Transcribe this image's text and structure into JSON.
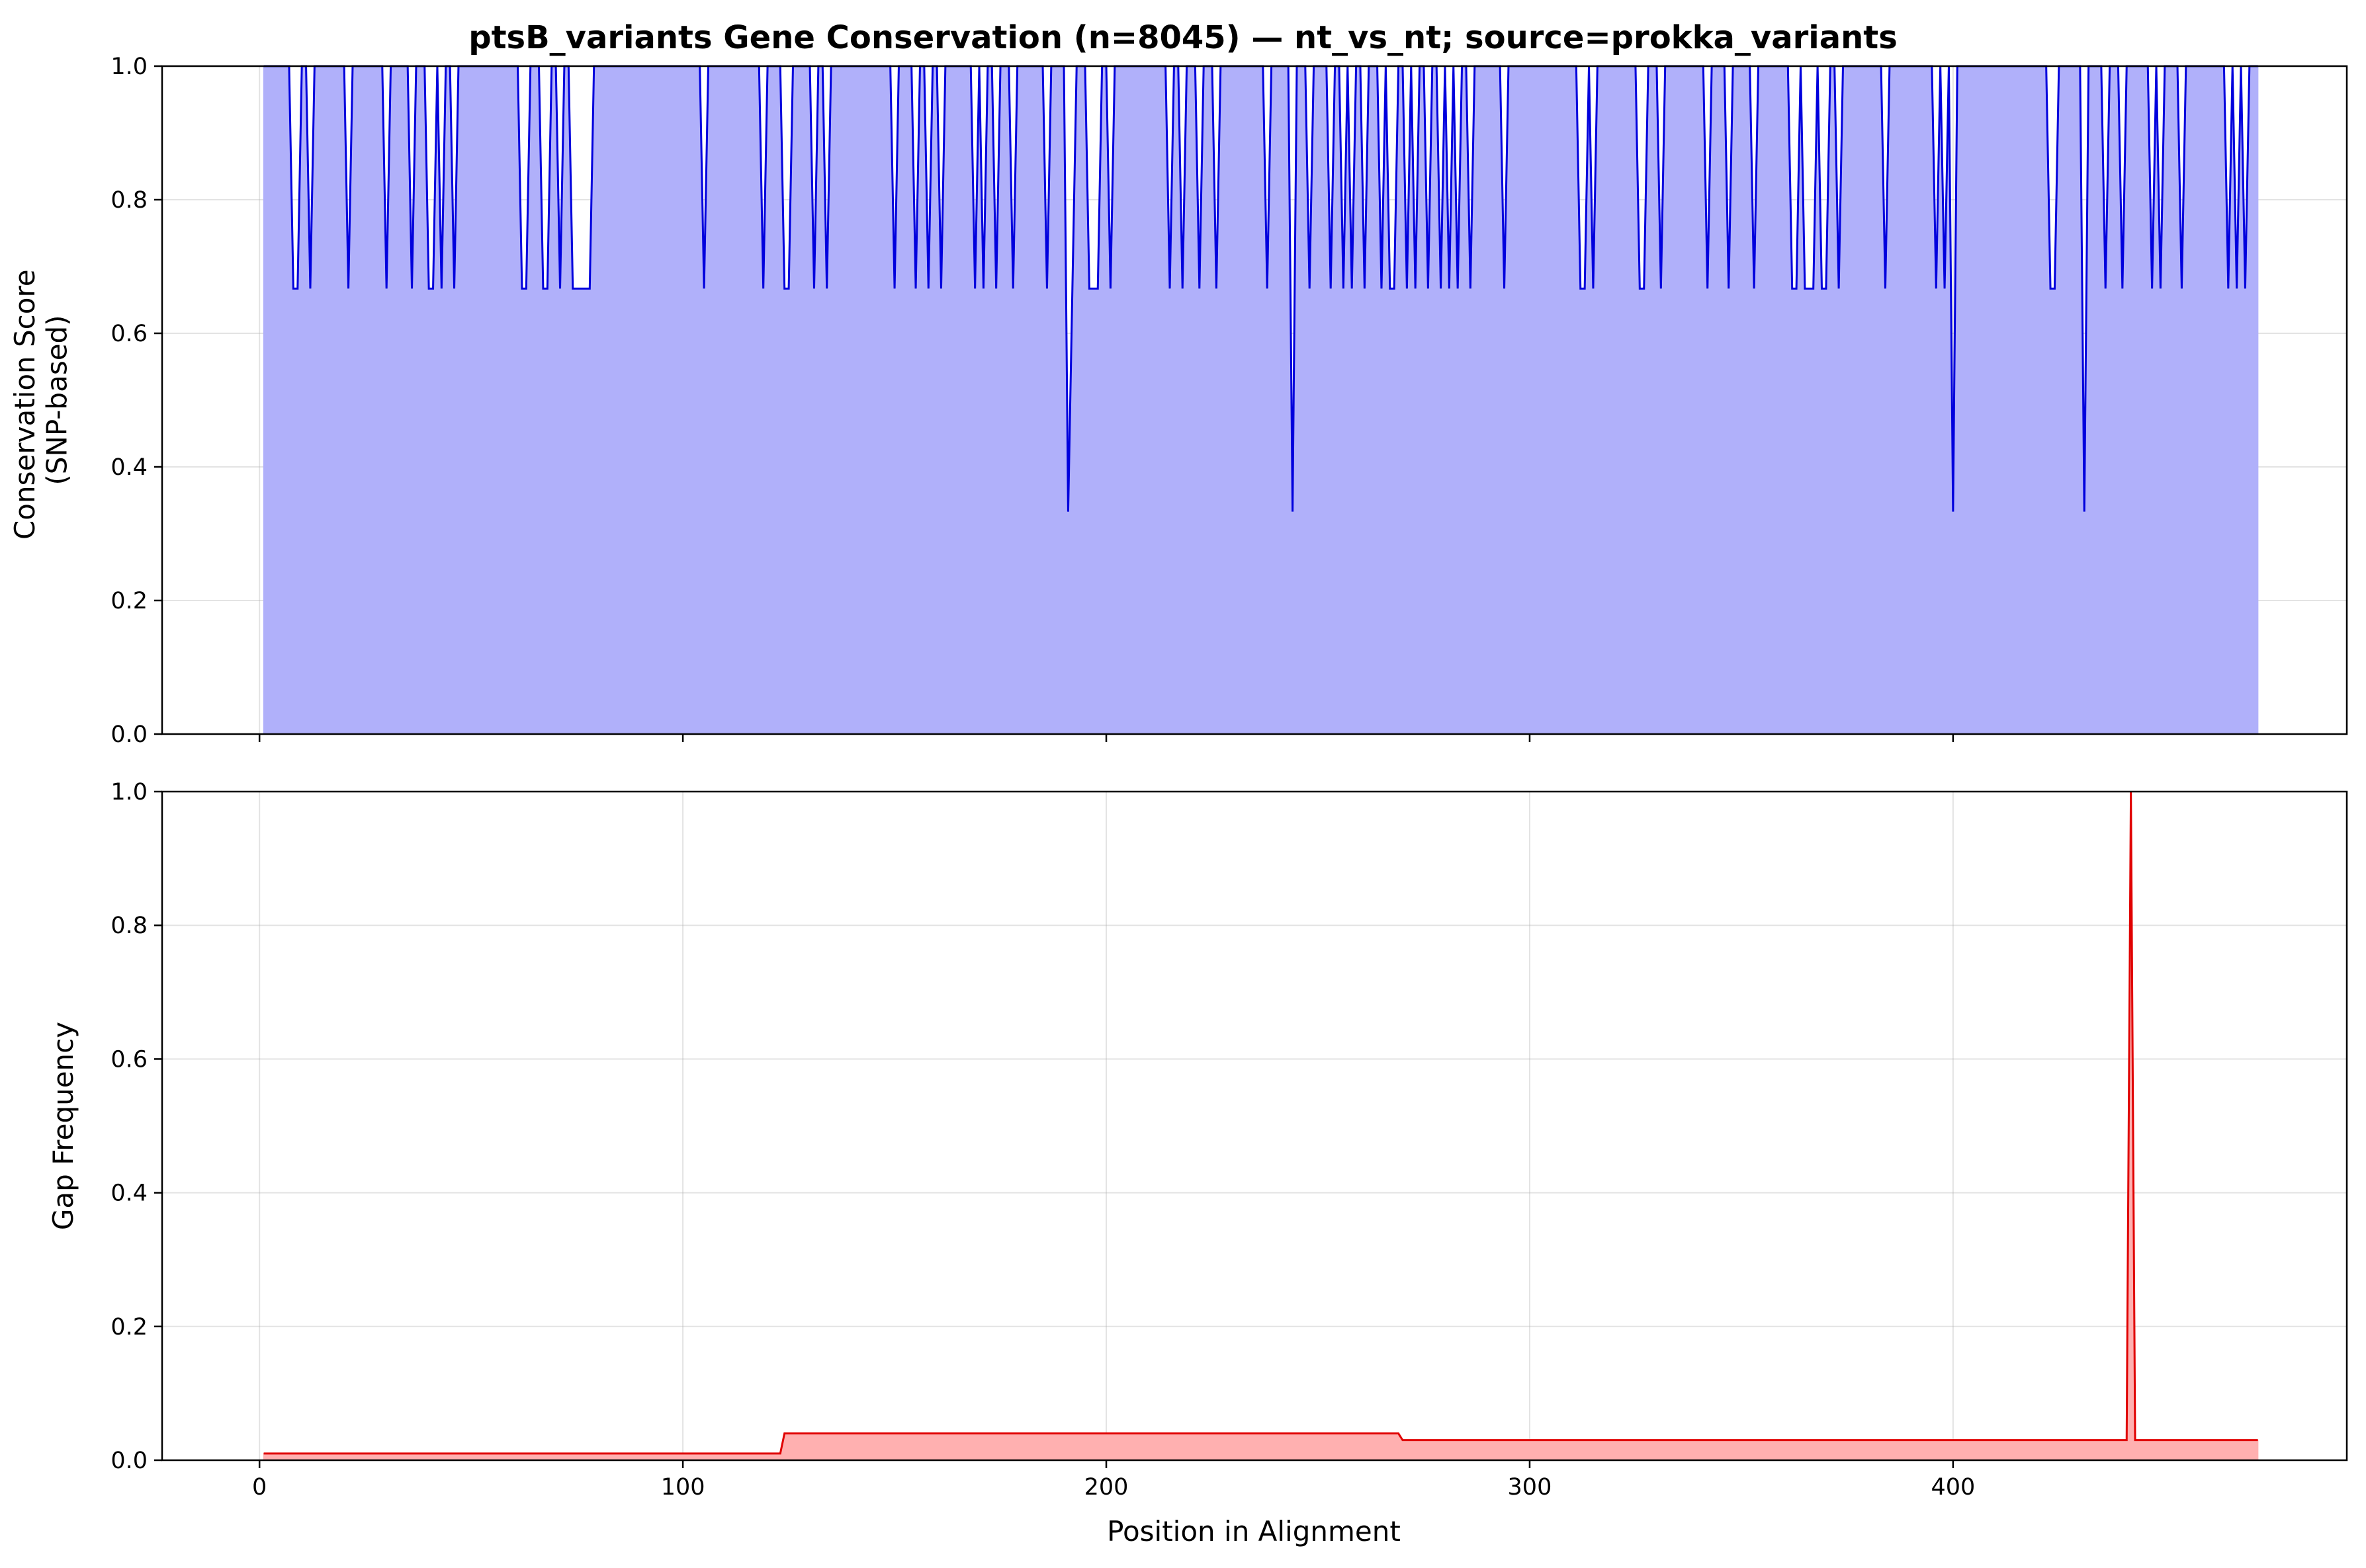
{
  "chart_data": {
    "title": "ptsB_variants Gene Conservation (n=8045) — nt_vs_nt; source=prokka_variants",
    "xlabel": "Position in Alignment",
    "xlim": [
      -23,
      493
    ],
    "xticks": [
      0,
      100,
      200,
      300,
      400
    ],
    "colors": {
      "conservation_line": "#0000dd",
      "conservation_fill": "#b0b0fa",
      "gap_line": "#e00000",
      "gap_fill": "#ffb0b0"
    },
    "panels": [
      {
        "type": "area",
        "ylabel": [
          "Conservation Score",
          "(SNP-based)"
        ],
        "ylim": [
          0,
          1
        ],
        "yticks": [
          "0.0",
          "0.2",
          "0.4",
          "0.6",
          "0.8",
          "1.0"
        ],
        "grid": true,
        "x_range": [
          1,
          472
        ],
        "default_value": 1.0,
        "dips": [
          [
            8,
            0.667
          ],
          [
            9,
            0.667
          ],
          [
            12,
            0.667
          ],
          [
            21,
            0.667
          ],
          [
            30,
            0.667
          ],
          [
            36,
            0.667
          ],
          [
            40,
            0.667
          ],
          [
            41,
            0.667
          ],
          [
            43,
            0.667
          ],
          [
            46,
            0.667
          ],
          [
            62,
            0.667
          ],
          [
            63,
            0.667
          ],
          [
            67,
            0.667
          ],
          [
            68,
            0.667
          ],
          [
            71,
            0.667
          ],
          [
            74,
            0.667
          ],
          [
            75,
            0.667
          ],
          [
            76,
            0.667
          ],
          [
            77,
            0.667
          ],
          [
            78,
            0.667
          ],
          [
            105,
            0.667
          ],
          [
            119,
            0.667
          ],
          [
            124,
            0.667
          ],
          [
            125,
            0.667
          ],
          [
            131,
            0.667
          ],
          [
            134,
            0.667
          ],
          [
            150,
            0.667
          ],
          [
            155,
            0.667
          ],
          [
            158,
            0.667
          ],
          [
            161,
            0.667
          ],
          [
            169,
            0.667
          ],
          [
            171,
            0.667
          ],
          [
            174,
            0.667
          ],
          [
            178,
            0.667
          ],
          [
            186,
            0.667
          ],
          [
            191,
            0.333
          ],
          [
            192,
            0.667
          ],
          [
            196,
            0.667
          ],
          [
            197,
            0.667
          ],
          [
            198,
            0.667
          ],
          [
            201,
            0.667
          ],
          [
            215,
            0.667
          ],
          [
            218,
            0.667
          ],
          [
            222,
            0.667
          ],
          [
            226,
            0.667
          ],
          [
            238,
            0.667
          ],
          [
            244,
            0.333
          ],
          [
            248,
            0.667
          ],
          [
            253,
            0.667
          ],
          [
            256,
            0.667
          ],
          [
            258,
            0.667
          ],
          [
            261,
            0.667
          ],
          [
            265,
            0.667
          ],
          [
            267,
            0.667
          ],
          [
            268,
            0.667
          ],
          [
            271,
            0.667
          ],
          [
            273,
            0.667
          ],
          [
            276,
            0.667
          ],
          [
            279,
            0.667
          ],
          [
            281,
            0.667
          ],
          [
            283,
            0.667
          ],
          [
            286,
            0.667
          ],
          [
            294,
            0.667
          ],
          [
            312,
            0.667
          ],
          [
            313,
            0.667
          ],
          [
            315,
            0.667
          ],
          [
            326,
            0.667
          ],
          [
            327,
            0.667
          ],
          [
            331,
            0.667
          ],
          [
            342,
            0.667
          ],
          [
            347,
            0.667
          ],
          [
            353,
            0.667
          ],
          [
            362,
            0.667
          ],
          [
            363,
            0.667
          ],
          [
            365,
            0.667
          ],
          [
            366,
            0.667
          ],
          [
            367,
            0.667
          ],
          [
            369,
            0.667
          ],
          [
            370,
            0.667
          ],
          [
            373,
            0.667
          ],
          [
            384,
            0.667
          ],
          [
            396,
            0.667
          ],
          [
            398,
            0.667
          ],
          [
            400,
            0.333
          ],
          [
            423,
            0.667
          ],
          [
            424,
            0.667
          ],
          [
            431,
            0.333
          ],
          [
            436,
            0.667
          ],
          [
            440,
            0.667
          ],
          [
            447,
            0.667
          ],
          [
            449,
            0.667
          ],
          [
            454,
            0.667
          ],
          [
            465,
            0.667
          ],
          [
            467,
            0.667
          ],
          [
            469,
            0.667
          ]
        ]
      },
      {
        "type": "area",
        "ylabel": [
          "Gap Frequency"
        ],
        "ylim": [
          0,
          1
        ],
        "yticks": [
          "0.0",
          "0.2",
          "0.4",
          "0.6",
          "0.8",
          "1.0"
        ],
        "grid": true,
        "points": [
          [
            1,
            0.01
          ],
          [
            122,
            0.01
          ],
          [
            123,
            0.01
          ],
          [
            124,
            0.04
          ],
          [
            268,
            0.04
          ],
          [
            269,
            0.04
          ],
          [
            270,
            0.03
          ],
          [
            441,
            0.03
          ],
          [
            442,
            1.0
          ],
          [
            443,
            0.03
          ],
          [
            472,
            0.03
          ]
        ]
      }
    ]
  }
}
